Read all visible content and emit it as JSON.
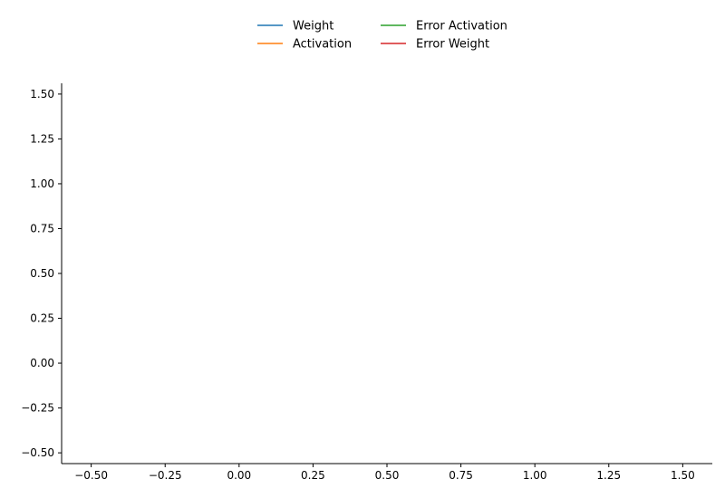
{
  "chart_data": {
    "type": "line",
    "title": "",
    "xlabel": "",
    "ylabel": "",
    "xlim": [
      -0.6,
      1.6
    ],
    "ylim": [
      -0.56,
      1.56
    ],
    "x_ticks": [
      -0.5,
      -0.25,
      0.0,
      0.25,
      0.5,
      0.75,
      1.0,
      1.25,
      1.5
    ],
    "x_tick_labels": [
      "−0.50",
      "−0.25",
      "0.00",
      "0.25",
      "0.50",
      "0.75",
      "1.00",
      "1.25",
      "1.50"
    ],
    "y_ticks": [
      -0.5,
      -0.25,
      0.0,
      0.25,
      0.5,
      0.75,
      1.0,
      1.25,
      1.5
    ],
    "y_tick_labels": [
      "−0.50",
      "−0.25",
      "0.00",
      "0.25",
      "0.50",
      "0.75",
      "1.00",
      "1.25",
      "1.50"
    ],
    "grid": false,
    "legend_position": "top-center",
    "series": [
      {
        "name": "Weight",
        "color": "#1f77b4",
        "x": [],
        "y": []
      },
      {
        "name": "Activation",
        "color": "#ff7f0e",
        "x": [],
        "y": []
      },
      {
        "name": "Error Activation",
        "color": "#2ca02c",
        "x": [],
        "y": []
      },
      {
        "name": "Error Weight",
        "color": "#d62728",
        "x": [],
        "y": []
      }
    ]
  }
}
